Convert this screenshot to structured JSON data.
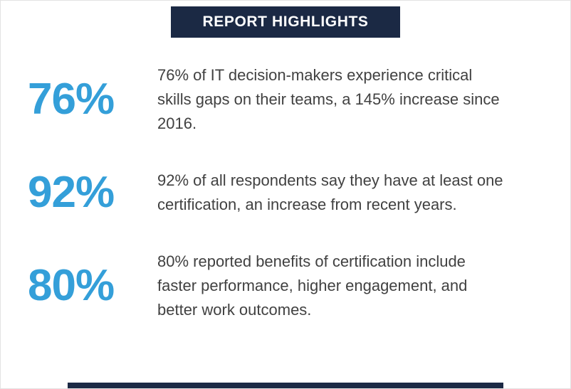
{
  "header": {
    "title": "REPORT HIGHLIGHTS"
  },
  "stats": [
    {
      "value": "76%",
      "text": "76% of IT decision-makers experience critical skills gaps on their teams, a 145% increase since 2016."
    },
    {
      "value": "92%",
      "text": "92% of all respondents say they have at least one certification, an increase from recent years."
    },
    {
      "value": "80%",
      "text": "80% reported benefits of certification include faster performance, higher engagement, and better work outcomes."
    }
  ],
  "colors": {
    "navy": "#1b2944",
    "accent_blue": "#349fd9",
    "body_text": "#414141"
  }
}
